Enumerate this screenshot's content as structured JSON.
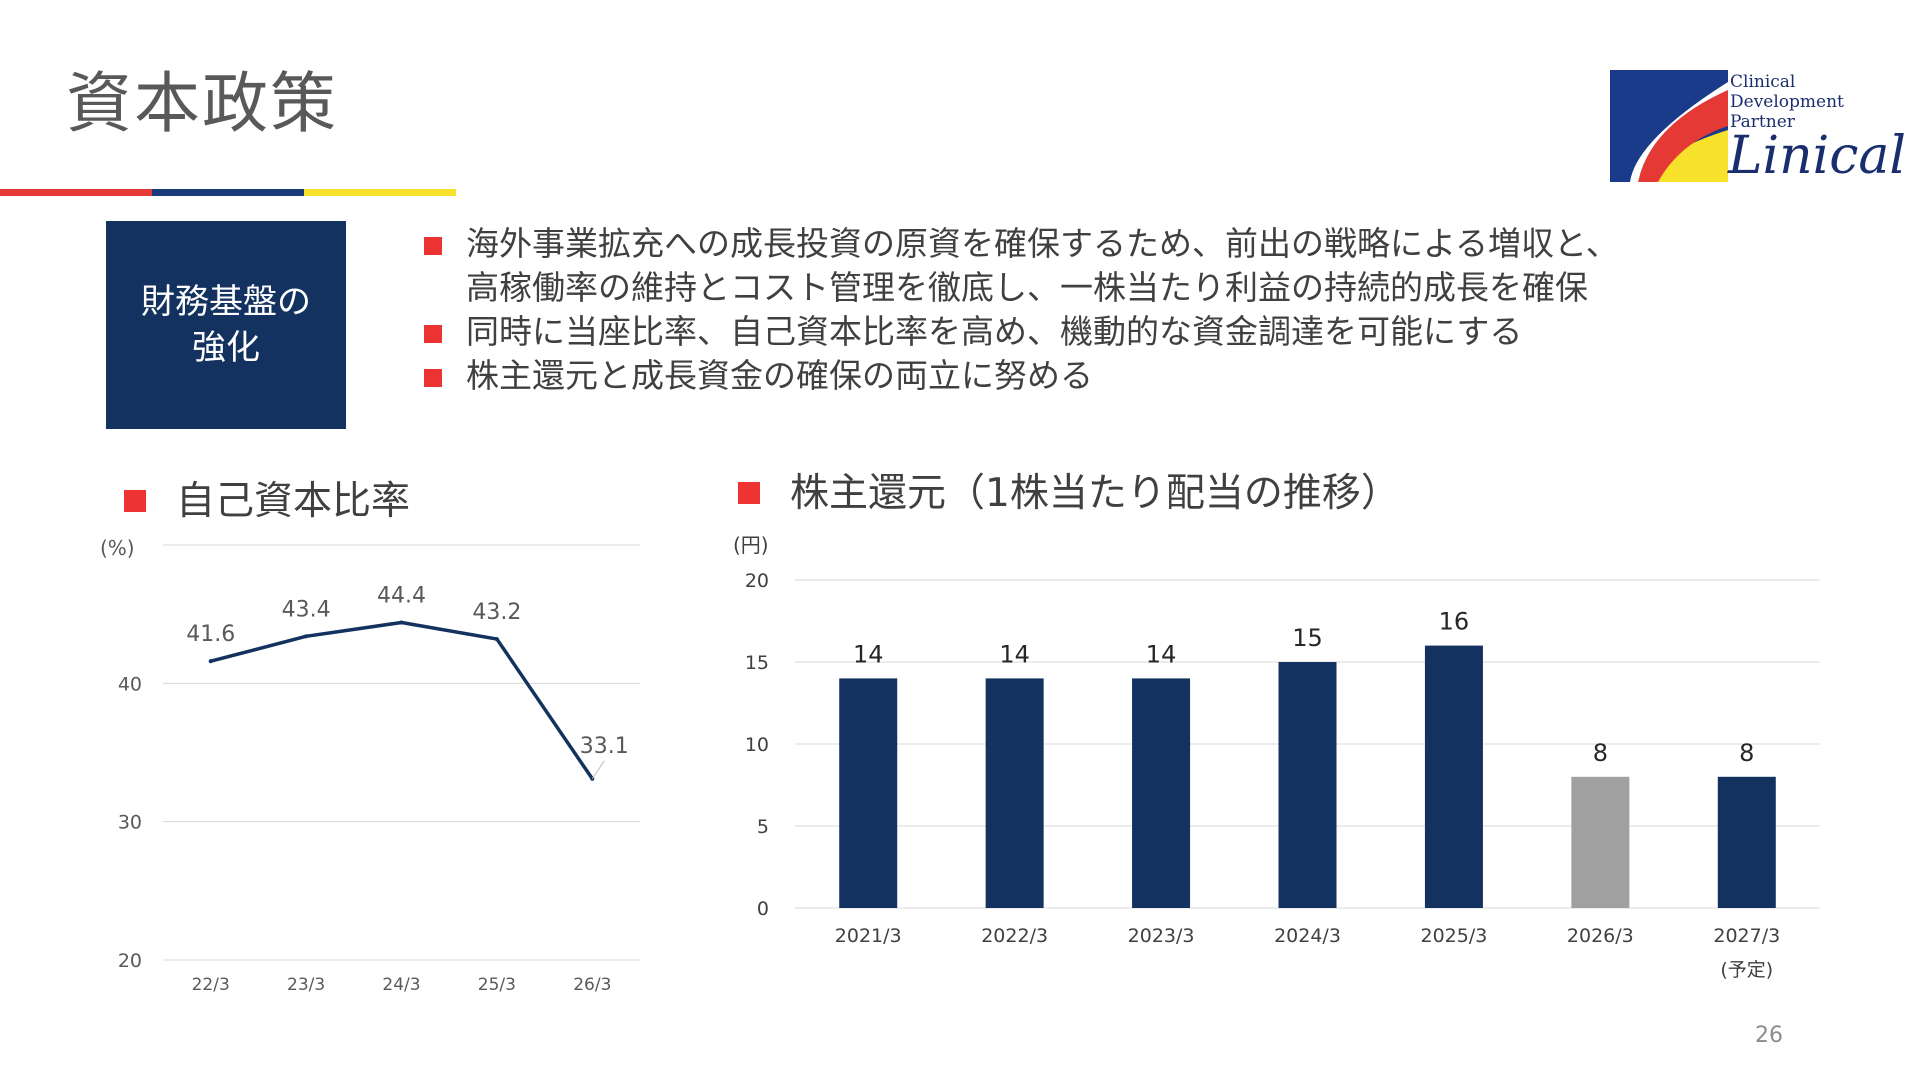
{
  "title": "資本政策",
  "brand": {
    "line1": "Clinical",
    "line2": "Development",
    "line3": "Partner",
    "name": "Linical",
    "colors": {
      "blue": "#1a2e6e",
      "red": "#e53935",
      "yellow": "#f7e12a"
    }
  },
  "box": {
    "line1": "財務基盤の",
    "line2": "強化"
  },
  "bullets": [
    {
      "line1": "海外事業拡充への成長投資の原資を確保するため、前出の戦略による増収と、",
      "line2": "高稼働率の維持とコスト管理を徹底し、一株当たり利益の持続的成長を確保"
    },
    {
      "line1": "同時に当座比率、自己資本比率を高め、機動的な資金調達を可能にする",
      "line2": ""
    },
    {
      "line1": "株主還元と成長資金の確保の両立に努める",
      "line2": ""
    }
  ],
  "chart_titles": {
    "left": "自己資本比率",
    "right": "株主還元（1株当たり配当の推移）"
  },
  "page_number": "26",
  "chart_data": [
    {
      "type": "line",
      "title": "自己資本比率",
      "unit_label": "(%)",
      "categories": [
        "22/3",
        "23/3",
        "24/3",
        "25/3",
        "26/3"
      ],
      "values": [
        41.6,
        43.4,
        44.4,
        43.2,
        33.1
      ],
      "data_labels": [
        "41.6",
        "43.4",
        "44.4",
        "43.2",
        "33.1"
      ],
      "ylim": [
        20,
        50
      ],
      "yticks": [
        20,
        30,
        40
      ],
      "grid": true,
      "line_color": "#14325f"
    },
    {
      "type": "bar",
      "title": "株主還元（1株当たり配当の推移）",
      "unit_label": "(円)",
      "categories": [
        "2021/3",
        "2022/3",
        "2023/3",
        "2024/3",
        "2025/3",
        "2026/3",
        "2027/3"
      ],
      "category_notes": [
        "",
        "",
        "",
        "",
        "",
        "",
        "(予定)"
      ],
      "values": [
        14,
        14,
        14,
        15,
        16,
        8,
        8
      ],
      "data_labels": [
        "14",
        "14",
        "14",
        "15",
        "16",
        "8",
        "8"
      ],
      "bar_colors": [
        "#14325f",
        "#14325f",
        "#14325f",
        "#14325f",
        "#14325f",
        "#a0a0a0",
        "#14325f"
      ],
      "ylim": [
        0,
        20
      ],
      "yticks": [
        0,
        5,
        10,
        15,
        20
      ],
      "grid": true
    }
  ]
}
